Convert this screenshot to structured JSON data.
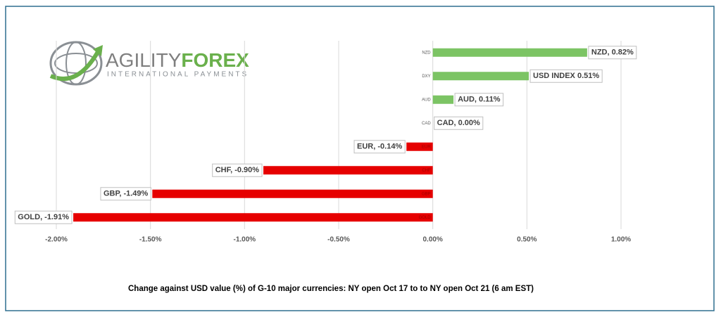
{
  "logo": {
    "brand_left": "AGILITY",
    "brand_right": "FOREX",
    "tagline": "INTERNATIONAL PAYMENTS"
  },
  "chart_data": {
    "type": "hbar",
    "title": "Change against  USD value (%)  of  G-10 major currencies:  NY open Oct 17 to to NY open  Oct 21 (6 am EST)",
    "categories": [
      "NZD",
      "DXY",
      "AUD",
      "CAD",
      "EUR",
      "CHF",
      "GBP",
      "GOLD"
    ],
    "values": [
      0.82,
      0.51,
      0.11,
      0.0,
      -0.14,
      -0.9,
      -1.49,
      -1.91
    ],
    "value_labels": [
      "NZD, 0.82%",
      "USD INDEX 0.51%",
      "AUD, 0.11%",
      "CAD, 0.00%",
      "EUR, -0.14%",
      "CHF, -0.90%",
      "GBP, -1.49%",
      "GOLD, -1.91%"
    ],
    "positive_color": "#7cc464",
    "negative_color": "#e60000",
    "xlim": [
      -2,
      1
    ],
    "xticks": [
      {
        "value": -2,
        "label": "-2.00%"
      },
      {
        "value": -1.5,
        "label": "-1.50%"
      },
      {
        "value": -1,
        "label": "-1.00%"
      },
      {
        "value": -0.5,
        "label": "-0.50%"
      },
      {
        "value": 0,
        "label": "0.00%"
      },
      {
        "value": 0.5,
        "label": "0.50%"
      },
      {
        "value": 1,
        "label": "1.00%"
      }
    ],
    "grid": true
  }
}
